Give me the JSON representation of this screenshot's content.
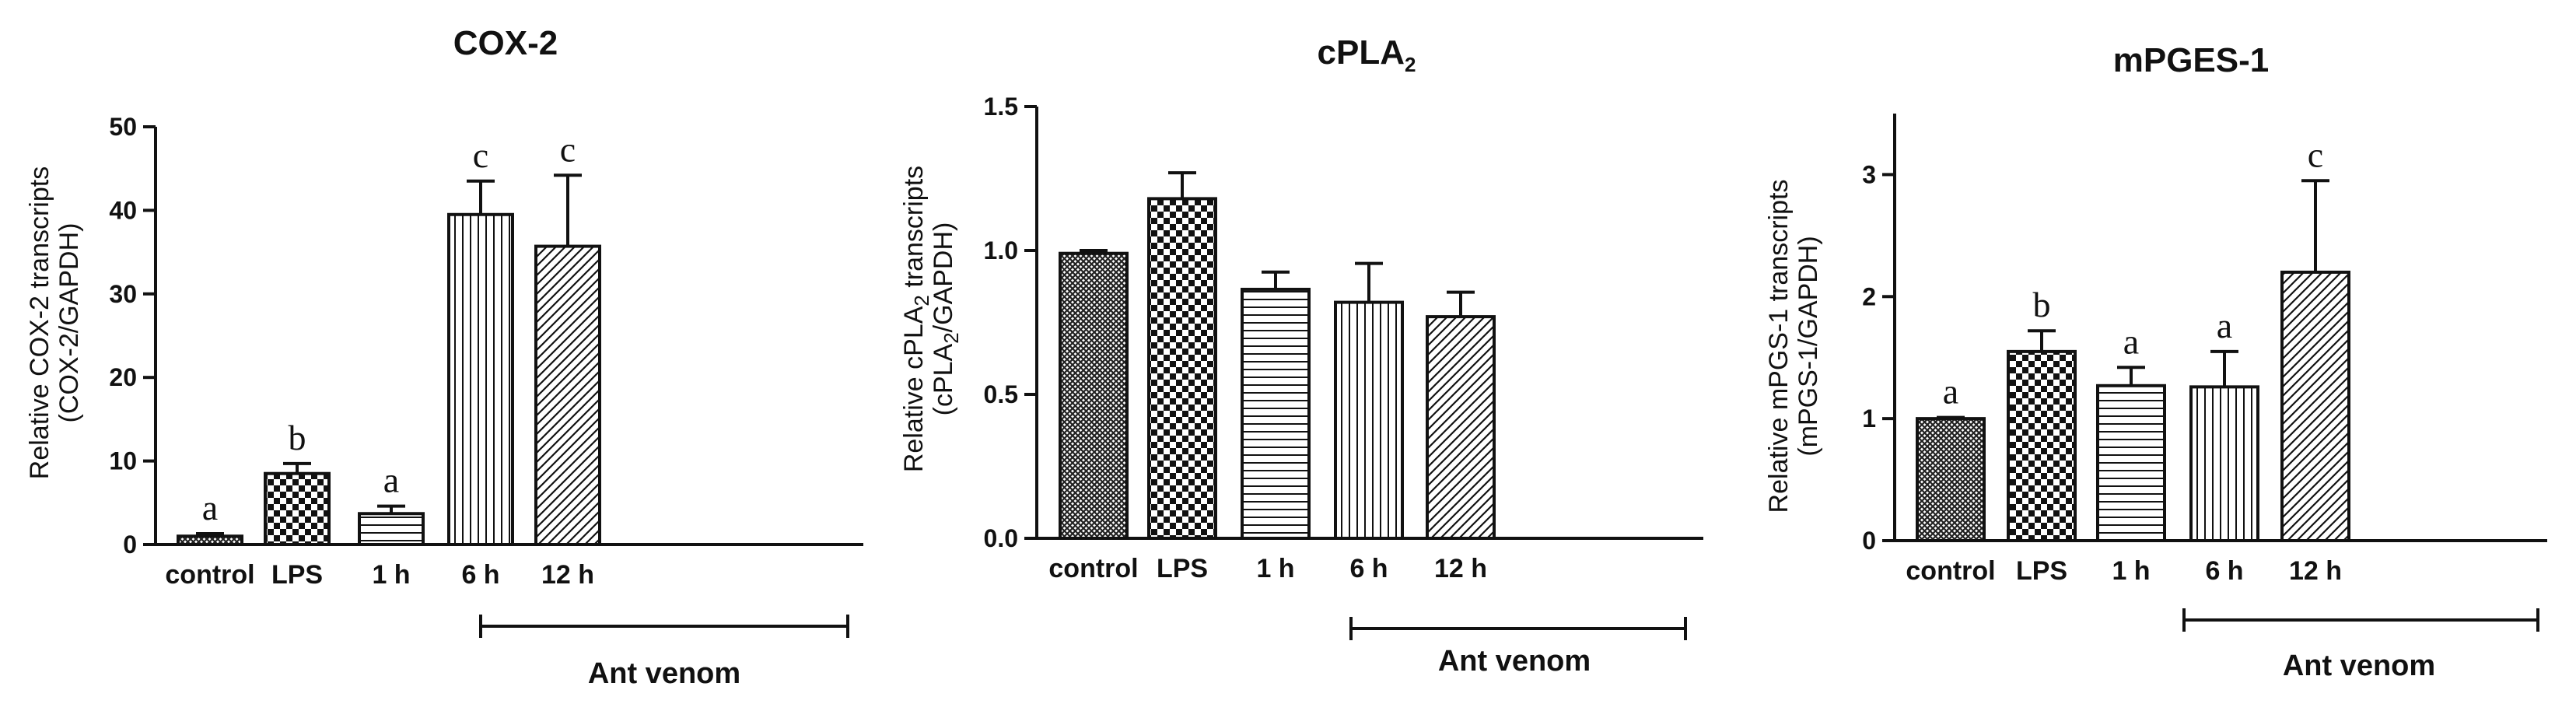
{
  "chart_data": [
    {
      "type": "bar",
      "title": "COX-2",
      "ylabel_line1": "Relative COX-2 transcripts",
      "ylabel_line2": "(COX-2/GAPDH)",
      "xlabel": "",
      "categories": [
        "control",
        "LPS",
        "1 h",
        "6 h",
        "12 h"
      ],
      "values": [
        1.0,
        8.5,
        3.7,
        39.5,
        35.7
      ],
      "errors": [
        0.3,
        1.2,
        0.9,
        4.0,
        8.5
      ],
      "significance": [
        "a",
        "b",
        "a",
        "c",
        "c"
      ],
      "patterns": [
        "crosshatch",
        "checker",
        "hlines",
        "vlines",
        "diag"
      ],
      "ylim": [
        0,
        50
      ],
      "yticks": [
        0,
        10,
        20,
        30,
        40,
        50
      ],
      "ytick_labels": [
        "0",
        "10",
        "20",
        "30",
        "40",
        "50"
      ],
      "group_label": "Ant venom",
      "group_span": [
        2,
        4
      ]
    },
    {
      "type": "bar",
      "title_main": "cPLA",
      "title_sub": "2",
      "ylabel_line1_main": "Relative cPLA",
      "ylabel_line1_sub": "2",
      "ylabel_line1_rest": " transcripts",
      "ylabel_line2_main": "(cPLA",
      "ylabel_line2_sub": "2",
      "ylabel_line2_rest": "/GAPDH)",
      "xlabel": "",
      "categories": [
        "control",
        "LPS",
        "1 h",
        "6 h",
        "12 h"
      ],
      "values": [
        0.99,
        1.18,
        0.865,
        0.82,
        0.77
      ],
      "errors": [
        0.01,
        0.09,
        0.06,
        0.135,
        0.085
      ],
      "significance": [
        "",
        "",
        "",
        "",
        ""
      ],
      "patterns": [
        "crosshatch",
        "checker",
        "hlines",
        "vlines",
        "diag"
      ],
      "ylim": [
        0,
        1.5
      ],
      "yticks": [
        0,
        0.5,
        1.0,
        1.5
      ],
      "ytick_labels": [
        "0.0",
        "0.5",
        "1.0",
        "1.5"
      ],
      "group_label": "Ant venom",
      "group_span": [
        2,
        4
      ]
    },
    {
      "type": "bar",
      "title": "mPGES-1",
      "ylabel_line1": "Relative mPGS-1 transcripts",
      "ylabel_line2": "(mPGS-1/GAPDH)",
      "xlabel": "",
      "categories": [
        "control",
        "LPS",
        "1 h",
        "6 h",
        "12 h"
      ],
      "values": [
        1.0,
        1.55,
        1.27,
        1.26,
        2.2
      ],
      "errors": [
        0.01,
        0.17,
        0.15,
        0.29,
        0.75
      ],
      "significance": [
        "a",
        "b",
        "a",
        "a",
        "c"
      ],
      "patterns": [
        "crosshatch",
        "checker",
        "hlines",
        "vlines",
        "diag"
      ],
      "ylim": [
        0,
        3.5
      ],
      "yticks": [
        0,
        1,
        2,
        3
      ],
      "ytick_labels": [
        "0",
        "1",
        "2",
        "3"
      ],
      "group_label": "Ant venom",
      "group_span": [
        2,
        4
      ]
    }
  ]
}
